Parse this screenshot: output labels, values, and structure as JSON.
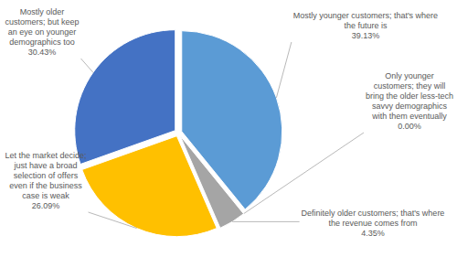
{
  "chart_data": {
    "type": "pie",
    "categories": [
      "Mostly younger customers; that's where the future is",
      "Only younger customers; they will bring the older less-tech savvy demographics with them eventually",
      "Definitely older customers; that's where the revenue comes from",
      "Let the market decide; just have a broad selection of offers even if the business case is weak",
      "Mostly older customers; but keep an eye on younger demographics too"
    ],
    "values": [
      39.13,
      0.0,
      4.35,
      26.09,
      30.43
    ],
    "value_labels": [
      "39.13%",
      "0.00%",
      "4.35%",
      "26.09%",
      "30.43%"
    ],
    "colors": [
      "#5b9bd5",
      "#ed7d31",
      "#a5a5a5",
      "#ffc000",
      "#4472c4"
    ],
    "data_labels": true
  }
}
